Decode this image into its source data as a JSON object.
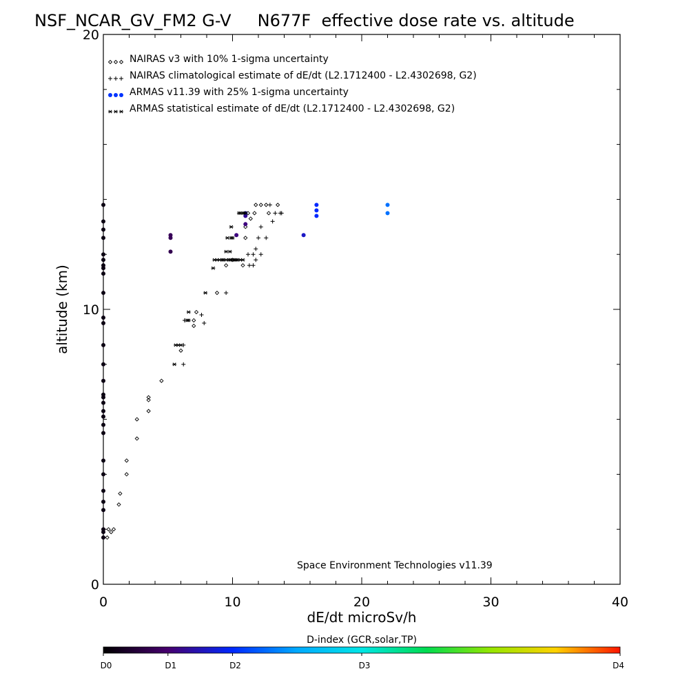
{
  "chart_data": {
    "type": "scatter",
    "title": "NSF_NCAR_GV_FM2 G-V     N677F  effective dose rate vs. altitude",
    "xlabel": "dE/dt microSv/h",
    "ylabel": "altitude (km)",
    "xlim": [
      0,
      40
    ],
    "ylim": [
      0,
      20
    ],
    "x_ticks": [
      "0",
      "10",
      "20",
      "30",
      "40"
    ],
    "y_ticks": [
      "0",
      "10",
      "20"
    ],
    "grid": false,
    "legend_position": "top-left",
    "credit": "Space Environment Technologies v11.39",
    "colorbar": {
      "title": "D-index (GCR,solar,TP)",
      "labels": [
        "D0",
        "D1",
        "D2",
        "D3",
        "D4"
      ],
      "label_positions": [
        0,
        0.125,
        0.25,
        0.5,
        1.0
      ]
    },
    "series": [
      {
        "name": "NAIRAS v3 with 10% 1-sigma uncertainty",
        "marker": "diamond",
        "color": "#000000",
        "x": [
          0.3,
          0.6,
          0.4,
          0.8,
          1.2,
          1.3,
          1.8,
          1.8,
          2.6,
          2.6,
          3.5,
          3.5,
          3.5,
          4.5,
          6.0,
          7.0,
          7.0,
          7.2,
          8.8,
          9.5,
          10.0,
          10.8,
          11.0,
          11.0,
          11.2,
          11.4,
          11.7,
          11.8,
          12.2,
          12.6,
          12.8,
          13.5
        ],
        "y": [
          1.7,
          1.9,
          2.0,
          2.0,
          2.9,
          3.3,
          4.0,
          4.5,
          5.3,
          6.0,
          6.3,
          6.7,
          6.8,
          7.4,
          8.5,
          9.4,
          9.6,
          9.9,
          10.6,
          11.6,
          11.8,
          11.6,
          12.6,
          13.0,
          13.5,
          13.3,
          13.5,
          13.8,
          13.8,
          13.8,
          13.5,
          13.8
        ]
      },
      {
        "name": "NAIRAS climatological estimate of dE/dt (L2.1712400 - L2.4302698, G2)",
        "marker": "plus",
        "color": "#000000",
        "x": [
          6.2,
          6.2,
          6.3,
          6.3,
          7.6,
          7.8,
          9.5,
          11.3,
          11.6,
          11.8,
          11.2,
          11.6,
          12.2,
          12.6,
          12.0,
          12.2,
          13.1,
          13.3,
          13.7,
          13.8,
          11.8,
          12.9
        ],
        "y": [
          8.0,
          8.7,
          9.6,
          9.6,
          9.8,
          9.5,
          10.6,
          11.6,
          11.6,
          11.8,
          12.0,
          12.0,
          12.0,
          12.6,
          12.6,
          13.0,
          13.2,
          13.5,
          13.5,
          13.5,
          12.2,
          13.8
        ]
      },
      {
        "name": "ARMAS v11.39 with 25% 1-sigma uncertainty",
        "marker": "dot",
        "color": "#0033ff",
        "x": [
          0,
          0,
          0,
          0,
          0,
          0,
          0,
          0,
          0,
          0,
          0,
          0,
          0,
          0,
          0,
          0,
          0,
          0,
          0,
          0,
          0,
          0,
          0,
          0,
          0,
          0,
          0,
          0,
          0,
          0,
          5.2,
          5.2,
          5.2,
          10.3,
          11.0,
          11.0,
          11.0,
          15.5,
          16.5,
          16.5,
          16.5,
          22.0,
          22.0
        ],
        "y": [
          1.7,
          1.9,
          2.0,
          2.7,
          3.0,
          3.4,
          4.0,
          4.5,
          5.5,
          5.8,
          6.1,
          6.3,
          6.6,
          6.8,
          6.9,
          7.4,
          8.0,
          8.7,
          9.5,
          9.7,
          10.6,
          11.3,
          11.5,
          11.6,
          11.8,
          12.0,
          12.6,
          12.9,
          13.2,
          13.8,
          12.1,
          12.6,
          12.7,
          12.7,
          13.1,
          13.4,
          13.5,
          12.7,
          13.4,
          13.6,
          13.8,
          13.5,
          13.8
        ],
        "d_index": [
          0.02,
          0.02,
          0.02,
          0.02,
          0.02,
          0.02,
          0.02,
          0.02,
          0.02,
          0.02,
          0.02,
          0.02,
          0.02,
          0.02,
          0.02,
          0.02,
          0.02,
          0.02,
          0.02,
          0.02,
          0.02,
          0.02,
          0.02,
          0.02,
          0.02,
          0.02,
          0.02,
          0.02,
          0.02,
          0.02,
          0.09,
          0.1,
          0.1,
          0.14,
          0.14,
          0.16,
          0.18,
          0.2,
          0.25,
          0.25,
          0.25,
          0.32,
          0.32
        ]
      },
      {
        "name": "ARMAS statistical estimate of dE/dt (L2.1712400 - L2.4302698, G2)",
        "marker": "asterisk",
        "color": "#000000",
        "x": [
          5.5,
          5.6,
          5.8,
          6.0,
          6.5,
          6.6,
          6.6,
          7.9,
          8.5,
          8.6,
          8.8,
          9.0,
          9.2,
          9.3,
          9.5,
          9.7,
          9.8,
          10.0,
          10.1,
          10.2,
          10.3,
          10.4,
          10.6,
          10.8,
          9.6,
          9.9,
          10.0,
          9.5,
          9.8,
          10.5,
          10.6,
          10.8,
          10.9,
          11.0,
          9.9
        ],
        "y": [
          8.0,
          8.7,
          8.7,
          8.7,
          9.6,
          9.6,
          9.9,
          10.6,
          11.5,
          11.8,
          11.8,
          11.8,
          11.8,
          11.8,
          11.8,
          11.8,
          11.8,
          11.8,
          11.8,
          11.8,
          11.8,
          11.8,
          11.8,
          11.8,
          12.6,
          12.6,
          12.6,
          12.1,
          12.1,
          13.5,
          13.5,
          13.5,
          13.5,
          13.5,
          13.0
        ]
      }
    ]
  }
}
